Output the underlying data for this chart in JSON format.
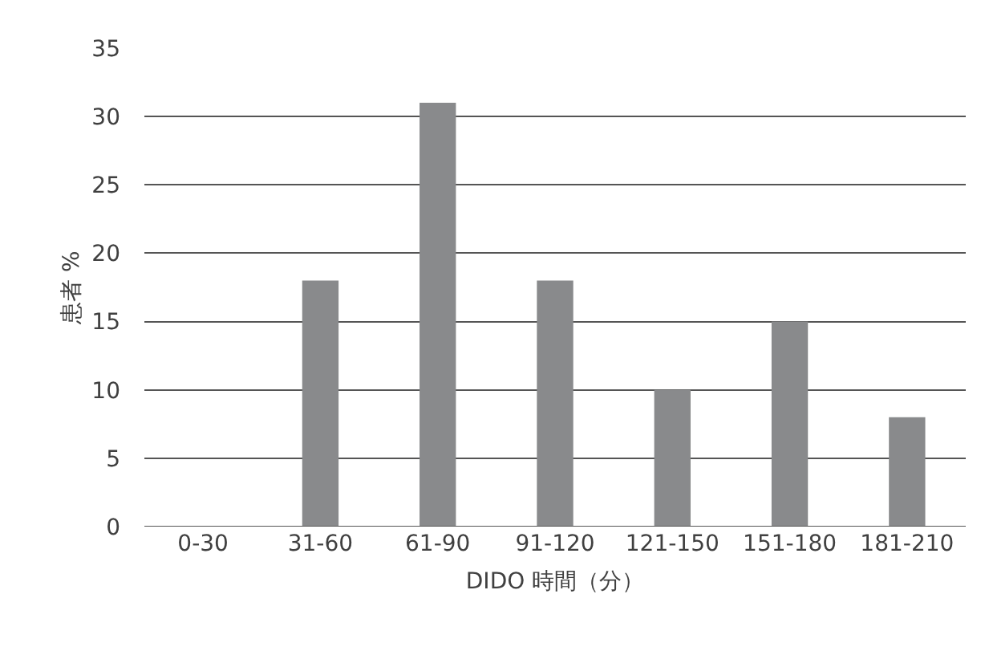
{
  "chart_data": {
    "type": "bar",
    "xlabel": "DIDO 時間（分）",
    "ylabel": "患者 %",
    "categories": [
      "0-30",
      "31-60",
      "61-90",
      "91-120",
      "121-150",
      "151-180",
      "181-210"
    ],
    "values": [
      0,
      18,
      31,
      18,
      10,
      15,
      8
    ],
    "color": "#898a8c",
    "ylim": [
      0,
      35
    ],
    "yticks": [
      0,
      5,
      10,
      15,
      20,
      25,
      30,
      35
    ],
    "grid": "y",
    "legend": false
  }
}
